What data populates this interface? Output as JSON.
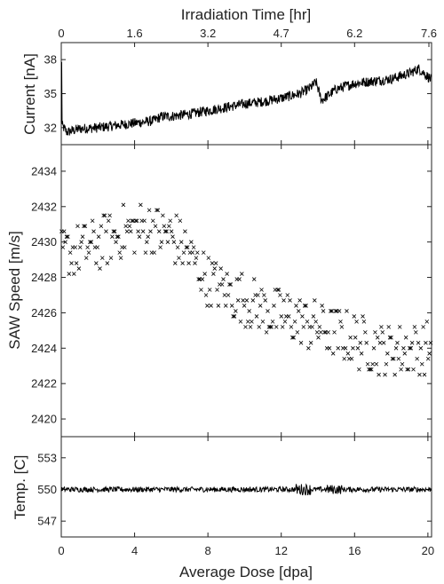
{
  "chart_data": [
    {
      "type": "line",
      "panel": "current",
      "ylabel": "Current [nA]",
      "xlabel_top": "Irradiation Time [hr]",
      "top_ticks": [
        "0",
        "1.6",
        "3.2",
        "4.7",
        "6.2",
        "7.6"
      ],
      "xlim": [
        0,
        20.2
      ],
      "ylim": [
        30.5,
        39.5
      ],
      "yticks": [
        32,
        35,
        38
      ],
      "series": [
        {
          "x": [
            0,
            0.3,
            1,
            2,
            3,
            4,
            5,
            5.5,
            6,
            7,
            8,
            9,
            10,
            11,
            12,
            13,
            13.5,
            13.9,
            14.2,
            15,
            16,
            17,
            18,
            19,
            19.5,
            20,
            20.2
          ],
          "y": [
            32.3,
            31.6,
            31.9,
            32.0,
            32.2,
            32.4,
            32.6,
            33.0,
            33.0,
            33.2,
            33.5,
            33.8,
            34.1,
            34.3,
            34.6,
            35.0,
            35.4,
            36.0,
            34.4,
            35.4,
            35.9,
            36.1,
            36.3,
            36.8,
            37.2,
            36.5,
            36.2
          ]
        }
      ]
    },
    {
      "type": "scatter",
      "panel": "saw_speed",
      "ylabel": "SAW Speed [m/s]",
      "xlim": [
        0,
        20.2
      ],
      "ylim": [
        2419,
        2435.5
      ],
      "yticks": [
        2420,
        2422,
        2424,
        2426,
        2428,
        2430,
        2432,
        2434
      ],
      "marker": "x",
      "trend": {
        "x": [
          0,
          2,
          3.5,
          5,
          6.5,
          8,
          9.5,
          11,
          12.5,
          14,
          15.5,
          17,
          18.5,
          20.2
        ],
        "y": [
          2429.3,
          2429.9,
          2430.6,
          2430.8,
          2430.0,
          2427.8,
          2427.0,
          2426.2,
          2425.7,
          2425.2,
          2424.6,
          2424.1,
          2423.9,
          2424.0
        ]
      },
      "spread": 1.5,
      "count": 300
    },
    {
      "type": "line",
      "panel": "temperature",
      "ylabel": "Temp. [C]",
      "xlabel": "Average Dose [dpa]",
      "xlim": [
        0,
        20.2
      ],
      "xticks": [
        0,
        4,
        8,
        12,
        16,
        20
      ],
      "ylim": [
        545.5,
        555
      ],
      "yticks": [
        547,
        550,
        553
      ],
      "series": [
        {
          "level": 550,
          "noise": 0.25
        }
      ]
    }
  ]
}
